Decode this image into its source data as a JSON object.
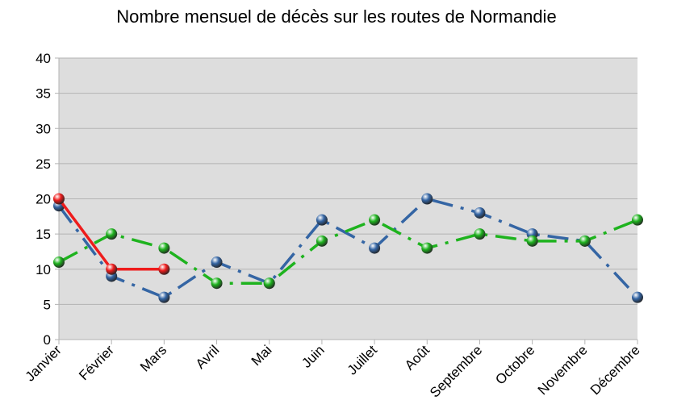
{
  "chart_data": {
    "type": "line",
    "title": "Nombre mensuel de décès sur les routes de Normandie",
    "categories": [
      "Janvier",
      "Février",
      "Mars",
      "Avril",
      "Mai",
      "Juin",
      "Juillet",
      "Août",
      "Septembre",
      "Octobre",
      "Novembre",
      "Décembre"
    ],
    "series": [
      {
        "color": "#3465a4",
        "dash": "dash-dot",
        "values": [
          19,
          9,
          6,
          11,
          8,
          17,
          13,
          20,
          18,
          15,
          14,
          6
        ]
      },
      {
        "color": "#1eb31e",
        "dash": "dash-dot",
        "values": [
          11,
          15,
          13,
          8,
          8,
          14,
          17,
          13,
          15,
          14,
          14,
          17
        ]
      },
      {
        "color": "#ee1c1c",
        "dash": "solid",
        "values": [
          20,
          10,
          10,
          null,
          null,
          null,
          null,
          null,
          null,
          null,
          null,
          null
        ]
      }
    ],
    "ylim": [
      0,
      40
    ],
    "yticks": [
      0,
      5,
      10,
      15,
      20,
      25,
      30,
      35,
      40
    ],
    "grid": true
  }
}
